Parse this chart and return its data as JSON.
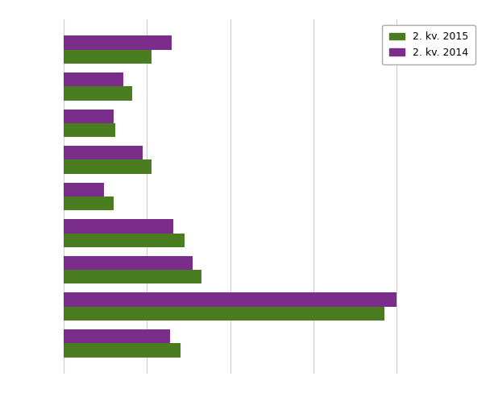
{
  "categories": [
    "",
    "",
    "",
    "",
    "",
    "",
    "",
    "",
    ""
  ],
  "values_2015": [
    105,
    82,
    62,
    105,
    60,
    145,
    165,
    385,
    140
  ],
  "values_2014": [
    130,
    72,
    60,
    95,
    48,
    132,
    155,
    400,
    128
  ],
  "color_2015": "#4a7c20",
  "color_2014": "#7b2d8b",
  "legend_2015": "2. kv. 2015",
  "legend_2014": "2. kv. 2014",
  "xlim": [
    0,
    500
  ],
  "xticks": [],
  "background_color": "#ffffff",
  "grid_color": "#cccccc",
  "figsize": [
    6.08,
    4.88
  ],
  "dpi": 100
}
